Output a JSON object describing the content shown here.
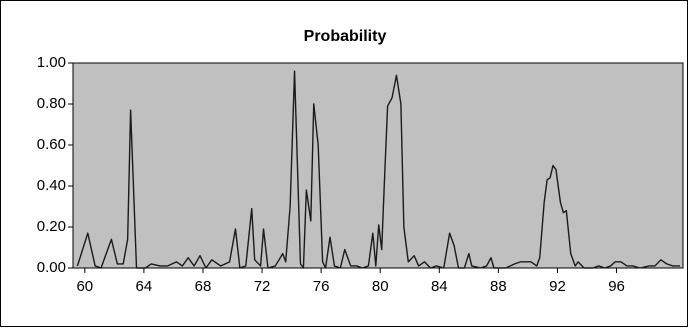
{
  "chart_data": {
    "type": "line",
    "title": "Probability",
    "color": "#1a1a1a",
    "x": [
      59.5,
      60.2,
      60.7,
      61.1,
      61.8,
      62.2,
      62.6,
      62.9,
      63.1,
      63.5,
      64.1,
      64.5,
      65.1,
      65.6,
      66.2,
      66.6,
      67.0,
      67.4,
      67.8,
      68.2,
      68.6,
      69.2,
      69.8,
      70.2,
      70.5,
      70.9,
      71.3,
      71.5,
      71.9,
      72.1,
      72.4,
      72.9,
      73.4,
      73.6,
      73.9,
      74.2,
      74.6,
      74.8,
      75.0,
      75.3,
      75.5,
      75.8,
      76.1,
      76.3,
      76.6,
      76.9,
      77.3,
      77.6,
      78.0,
      78.4,
      78.8,
      79.2,
      79.5,
      79.7,
      79.9,
      80.1,
      80.3,
      80.5,
      80.8,
      81.1,
      81.4,
      81.6,
      81.9,
      82.3,
      82.6,
      83.0,
      83.4,
      83.8,
      84.3,
      84.7,
      85.0,
      85.3,
      85.7,
      86.0,
      86.2,
      86.8,
      87.2,
      87.5,
      87.7,
      88.5,
      89.1,
      89.5,
      90.2,
      90.6,
      90.8,
      91.1,
      91.3,
      91.5,
      91.7,
      91.9,
      92.2,
      92.4,
      92.6,
      92.9,
      93.2,
      93.4,
      93.8,
      94.4,
      94.8,
      95.2,
      95.6,
      95.9,
      96.3,
      96.7,
      97.1,
      97.6,
      98.2,
      98.6,
      99.0,
      99.4,
      99.8,
      100.3
    ],
    "values": [
      0.01,
      0.17,
      0.01,
      0.0,
      0.14,
      0.02,
      0.02,
      0.14,
      0.77,
      0.0,
      0.0,
      0.02,
      0.01,
      0.01,
      0.03,
      0.01,
      0.05,
      0.01,
      0.06,
      0.0,
      0.04,
      0.01,
      0.03,
      0.19,
      0.0,
      0.01,
      0.29,
      0.04,
      0.01,
      0.19,
      0.0,
      0.01,
      0.07,
      0.03,
      0.3,
      0.96,
      0.02,
      0.0,
      0.38,
      0.23,
      0.8,
      0.6,
      0.03,
      0.0,
      0.15,
      0.01,
      0.0,
      0.09,
      0.01,
      0.01,
      0.0,
      0.01,
      0.17,
      0.01,
      0.21,
      0.09,
      0.45,
      0.79,
      0.83,
      0.94,
      0.8,
      0.2,
      0.03,
      0.06,
      0.01,
      0.03,
      0.0,
      0.01,
      0.0,
      0.17,
      0.11,
      0.0,
      0.0,
      0.07,
      0.01,
      0.0,
      0.01,
      0.05,
      0.0,
      0.0,
      0.02,
      0.03,
      0.03,
      0.01,
      0.05,
      0.32,
      0.43,
      0.44,
      0.5,
      0.48,
      0.32,
      0.27,
      0.28,
      0.07,
      0.01,
      0.03,
      0.0,
      0.0,
      0.01,
      0.0,
      0.01,
      0.03,
      0.03,
      0.01,
      0.01,
      0.0,
      0.01,
      0.01,
      0.04,
      0.02,
      0.01,
      0.01
    ],
    "xlim": [
      59.2,
      100.5
    ],
    "xticks": [
      60,
      64,
      68,
      72,
      76,
      80,
      84,
      88,
      92,
      96
    ],
    "ylim": [
      0,
      1
    ],
    "yticks": [
      {
        "value": 0,
        "label": "0.00"
      },
      {
        "value": 0.2,
        "label": "0.20"
      },
      {
        "value": 0.4,
        "label": "0.40"
      },
      {
        "value": 0.6,
        "label": "0.60"
      },
      {
        "value": 0.8,
        "label": "0.80"
      },
      {
        "value": 1,
        "label": "1.00"
      }
    ]
  }
}
